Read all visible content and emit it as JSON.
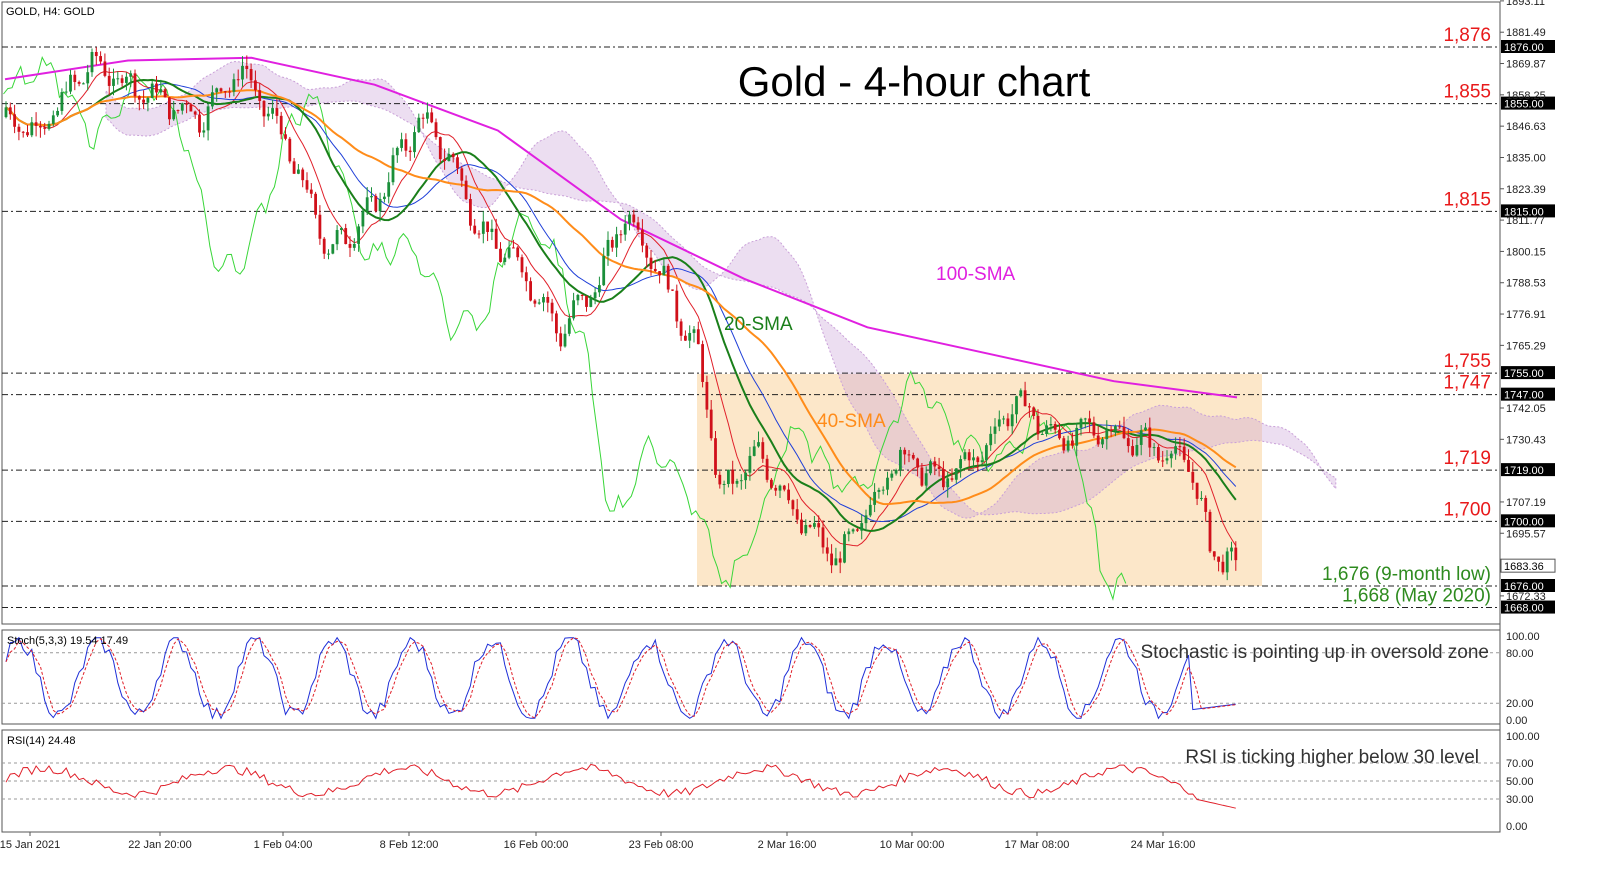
{
  "window_label": "GOLD, H4:  GOLD",
  "title": "Gold - 4-hour chart",
  "colors": {
    "sma100": "#e020e0",
    "sma20": "#1a7f1a",
    "sma40": "#ff8c1a",
    "kijun": "#1f3fd8",
    "tenkan": "#e0202a",
    "chikou": "#39d639",
    "cloud_bear": "#c9a0d8",
    "cloud_bull": "#f0b060",
    "range_box": "#fbe3c0",
    "level_red": "#e8191a",
    "level_green": "#2e8b1f",
    "stoch_main": "#1f2fd8",
    "stoch_signal": "#e0202a",
    "rsi": "#e0202a"
  },
  "annotations": {
    "sma100": "100-SMA",
    "sma20": "20-SMA",
    "sma40": "40-SMA"
  },
  "levels": [
    {
      "label": "1,876",
      "value": 1876,
      "tag": "1876.00",
      "color": "red"
    },
    {
      "label": "1,855",
      "value": 1855,
      "tag": "1855.00",
      "color": "red"
    },
    {
      "label": "1,815",
      "value": 1815,
      "tag": "1815.00",
      "color": "red"
    },
    {
      "label": "1,755",
      "value": 1755,
      "tag": "1755.00",
      "color": "red"
    },
    {
      "label": "1,747",
      "value": 1747,
      "tag": "1747.00",
      "color": "red"
    },
    {
      "label": "1,719",
      "value": 1719,
      "tag": "1719.00",
      "color": "red"
    },
    {
      "label": "1,700",
      "value": 1700,
      "tag": "1700.00",
      "color": "red"
    },
    {
      "label": "1,676 (9-month low)",
      "value": 1676,
      "tag": "1676.00",
      "color": "green"
    },
    {
      "label": "1,668 (May 2020)",
      "value": 1668,
      "tag": "1668.00",
      "color": "green"
    }
  ],
  "price_ticks": [
    "1893.11",
    "1881.49",
    "1869.87",
    "1858.25",
    "1846.63",
    "1835.00",
    "1823.39",
    "1811.77",
    "1800.15",
    "1788.53",
    "1776.91",
    "1765.29",
    "1742.05",
    "1730.43",
    "1707.19",
    "1695.57",
    "1672.33"
  ],
  "current_price_tag": "1683.36",
  "x_ticks": [
    "15 Jan 2021",
    "22 Jan 20:00",
    "1 Feb 04:00",
    "8 Feb 12:00",
    "16 Feb 00:00",
    "23 Feb 08:00",
    "2 Mar 16:00",
    "10 Mar 00:00",
    "17 Mar 08:00",
    "24 Mar 16:00"
  ],
  "stoch": {
    "label": "Stoch(5,3,3) 19.54 17.49",
    "comment": "Stochastic is pointing up in oversold zone",
    "ticks": [
      "100.00",
      "80.00",
      "20.00",
      "0.00"
    ]
  },
  "rsi": {
    "label": "RSI(14) 24.48",
    "comment": "RSI is ticking higher below 30 level",
    "ticks": [
      "100.00",
      "70.00",
      "50.00",
      "30.00",
      "0.00"
    ]
  },
  "chart_data": {
    "type": "line",
    "title": "Gold - 4-hour chart",
    "xlabel": "",
    "ylabel": "",
    "ylim": [
      1664,
      1895
    ],
    "x": [
      "15 Jan 2021",
      "22 Jan 20:00",
      "1 Feb 04:00",
      "8 Feb 12:00",
      "16 Feb 00:00",
      "23 Feb 08:00",
      "2 Mar 16:00",
      "10 Mar 00:00",
      "17 Mar 08:00",
      "24 Mar 16:00",
      "end"
    ],
    "series": [
      {
        "name": "Price",
        "values": [
          1850,
          1862,
          1858,
          1840,
          1800,
          1790,
          1700,
          1700,
          1730,
          1728,
          1683
        ]
      },
      {
        "name": "20-SMA",
        "values": [
          1845,
          1860,
          1853,
          1830,
          1810,
          1795,
          1715,
          1702,
          1728,
          1730,
          1710
        ]
      },
      {
        "name": "40-SMA",
        "values": [
          1848,
          1856,
          1852,
          1835,
          1815,
          1800,
          1740,
          1708,
          1725,
          1730,
          1722
        ]
      },
      {
        "name": "100-SMA",
        "values": [
          1864,
          1871,
          1872,
          1862,
          1845,
          1812,
          1790,
          1772,
          1762,
          1752,
          1746
        ]
      }
    ],
    "horizontal_levels": [
      1876,
      1855,
      1815,
      1755,
      1747,
      1719,
      1700,
      1676,
      1668
    ],
    "range_box": {
      "from": "27 Feb",
      "to": "end",
      "low": 1676,
      "high": 1755
    },
    "stochastic": {
      "k": 19.54,
      "d": 17.49,
      "levels": [
        80,
        20
      ]
    },
    "rsi": {
      "value": 24.48,
      "levels": [
        70,
        50,
        30
      ]
    }
  }
}
